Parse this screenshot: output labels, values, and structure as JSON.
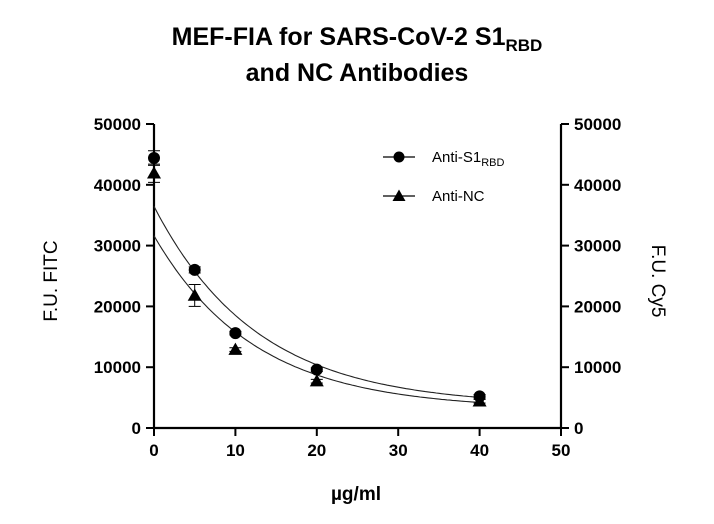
{
  "chart_data": {
    "type": "scatter",
    "title_line1": "MEF-FIA for SARS-CoV-2 S1",
    "title_line1_sub": "RBD",
    "title_line2": "and NC Antibodies",
    "xlabel": "µg/ml",
    "ylabel_left": "F.U. FITC",
    "ylabel_right": "F.U. Cy5",
    "xlim": [
      0,
      50
    ],
    "ylim": [
      0,
      50000
    ],
    "x_ticks": [
      "0",
      "10",
      "20",
      "30",
      "40",
      "50"
    ],
    "y_ticks": [
      "0",
      "10000",
      "20000",
      "30000",
      "40000",
      "50000"
    ],
    "legend_position": "top-right",
    "grid": false,
    "series": [
      {
        "name": "Anti-S1",
        "name_sub": "RBD",
        "marker": "circle",
        "axis": "left",
        "color": "#000000",
        "x": [
          0,
          5,
          10,
          20,
          40
        ],
        "y": [
          44400,
          26000,
          15600,
          9600,
          5200
        ],
        "error": [
          1200,
          500,
          300,
          300,
          300
        ]
      },
      {
        "name": "Anti-NC",
        "marker": "triangle",
        "axis": "right",
        "color": "#000000",
        "x": [
          0,
          5,
          10,
          20,
          40
        ],
        "y": [
          41900,
          21800,
          12900,
          7700,
          4400
        ],
        "error": [
          1500,
          1800,
          300,
          300,
          300
        ]
      }
    ]
  }
}
